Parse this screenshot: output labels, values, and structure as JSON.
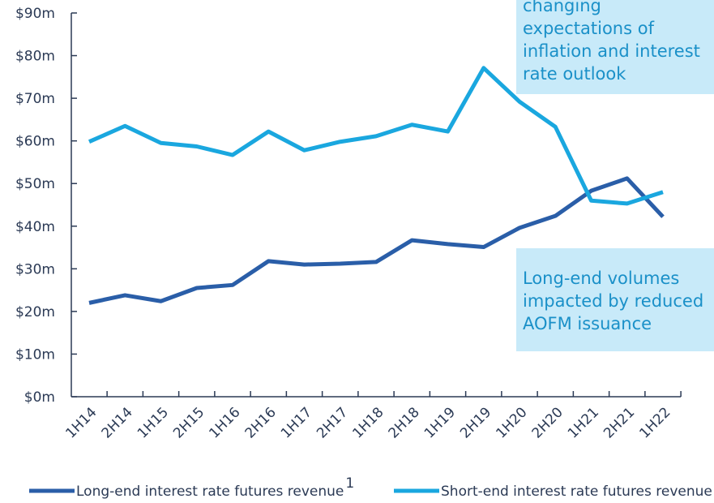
{
  "chart_data": {
    "type": "line",
    "categories": [
      "1H14",
      "2H14",
      "1H15",
      "2H15",
      "1H16",
      "2H16",
      "1H17",
      "2H17",
      "1H18",
      "2H18",
      "1H19",
      "2H19",
      "1H20",
      "2H20",
      "1H21",
      "2H21",
      "1H22"
    ],
    "series": [
      {
        "name": "Long-end interest rate futures revenue",
        "footnote": "1",
        "color": "#2a5ea8",
        "values": [
          22,
          23.8,
          22.4,
          25.5,
          26.2,
          31.8,
          31,
          31.2,
          31.6,
          36.7,
          35.8,
          35.1,
          39.6,
          42.4,
          48.3,
          51.2,
          42.2
        ]
      },
      {
        "name": "Short-end interest rate futures revenue",
        "color": "#1aa7df",
        "values": [
          59.8,
          63.5,
          59.5,
          58.7,
          56.7,
          62.2,
          57.8,
          59.8,
          61.1,
          63.8,
          62.2,
          77.1,
          69.2,
          63.3,
          46,
          45.3,
          48
        ]
      }
    ],
    "ylim": [
      0,
      90
    ],
    "yticks": [
      {
        "value": 0,
        "label": "$0m"
      },
      {
        "value": 10,
        "label": "$10m"
      },
      {
        "value": 20,
        "label": "$20m"
      },
      {
        "value": 30,
        "label": "$30m"
      },
      {
        "value": 40,
        "label": "$40m"
      },
      {
        "value": 50,
        "label": "$50m"
      },
      {
        "value": 60,
        "label": "$60m"
      },
      {
        "value": 70,
        "label": "$70m"
      },
      {
        "value": 80,
        "label": "$80m"
      },
      {
        "value": 90,
        "label": "$90m"
      }
    ],
    "annotations": [
      {
        "lines": [
          "changing",
          "expectations of",
          "inflation and interest",
          "rate outlook"
        ]
      },
      {
        "lines": [
          "Long-end volumes",
          "impacted by reduced",
          "AOFM issuance"
        ]
      }
    ],
    "legend": "bottom"
  }
}
